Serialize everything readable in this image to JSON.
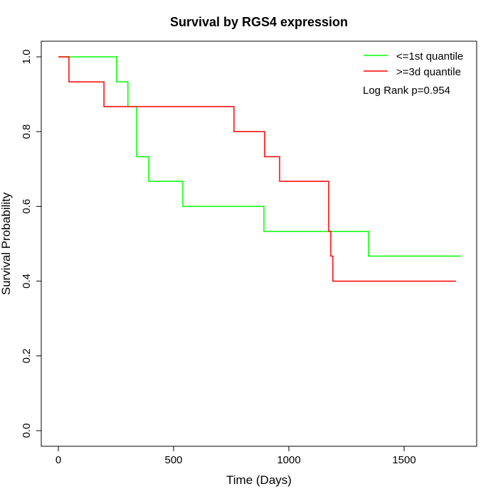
{
  "chart_data": {
    "type": "line",
    "subtype": "kaplan-meier step",
    "title": "Survival by RGS4 expression",
    "xlabel": "Time (Days)",
    "ylabel": "Survival Probability",
    "xlim": [
      0,
      1750
    ],
    "ylim": [
      0,
      1.0
    ],
    "xticks": [
      0,
      500,
      1000,
      1500
    ],
    "yticks": [
      0.0,
      0.2,
      0.4,
      0.6,
      0.8,
      1.0
    ],
    "xtick_labels": [
      "0",
      "500",
      "1000",
      "1500"
    ],
    "ytick_labels": [
      "0.0",
      "0.2",
      "0.4",
      "0.6",
      "0.8",
      "1.0"
    ],
    "legend_position": "top-right",
    "annotation": "Log Rank p=0.954",
    "series": [
      {
        "name": "<=1st quantile",
        "color": "#00ff00",
        "x": [
          0,
          253,
          302,
          340,
          392,
          540,
          892,
          1346,
          1747
        ],
        "y": [
          1.0,
          0.933,
          0.867,
          0.733,
          0.667,
          0.6,
          0.533,
          0.467,
          0.467
        ]
      },
      {
        "name": ">=3d quantile",
        "color": "#ff0000",
        "x": [
          0,
          46,
          198,
          762,
          895,
          960,
          1173,
          1182,
          1191,
          1725
        ],
        "y": [
          1.0,
          0.933,
          0.867,
          0.8,
          0.733,
          0.667,
          0.533,
          0.467,
          0.4,
          0.4
        ]
      }
    ]
  }
}
